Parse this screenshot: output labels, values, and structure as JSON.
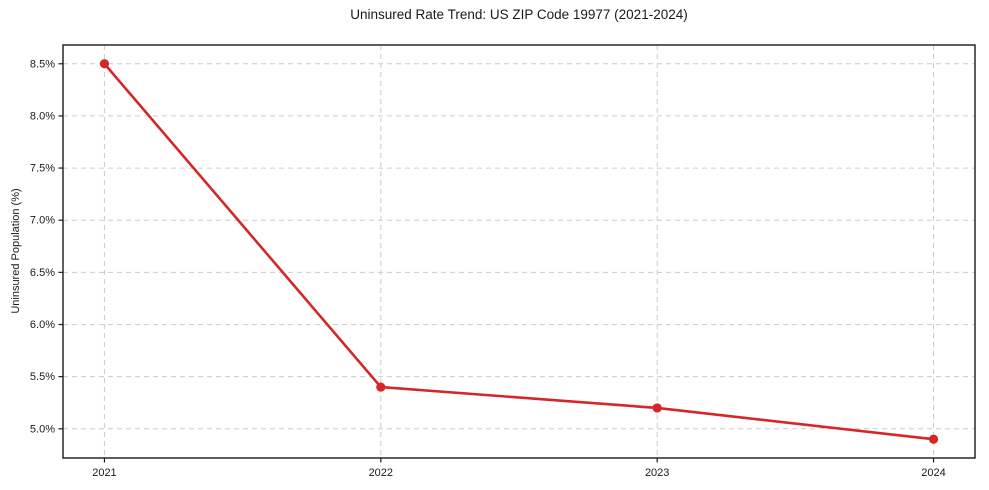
{
  "chart": {
    "title": "Uninsured Rate Trend: US ZIP Code 19977 (2021-2024)",
    "ylabel": "Uninsured Population (%)"
  },
  "chart_data": {
    "type": "line",
    "title": "Uninsured Rate Trend: US ZIP Code 19977 (2021-2024)",
    "xlabel": "",
    "ylabel": "Uninsured Population (%)",
    "x": [
      2021,
      2022,
      2023,
      2024
    ],
    "values": [
      8.5,
      5.4,
      5.2,
      4.9
    ],
    "xticks": [
      "2021",
      "2022",
      "2023",
      "2024"
    ],
    "yticks": [
      "5.0%",
      "5.5%",
      "6.0%",
      "6.5%",
      "7.0%",
      "7.5%",
      "8.0%",
      "8.5%"
    ],
    "ytick_values": [
      5.0,
      5.5,
      6.0,
      6.5,
      7.0,
      7.5,
      8.0,
      8.5
    ],
    "xlim": [
      2020.85,
      2024.15
    ],
    "ylim": [
      4.72,
      8.68
    ],
    "grid": true,
    "grid_style": "dashed",
    "legend": false,
    "line_color": "#d62728",
    "marker": "circle",
    "grid_color": "#cccccc",
    "spine_color": "#1a1a1a",
    "background": "#ffffff"
  }
}
